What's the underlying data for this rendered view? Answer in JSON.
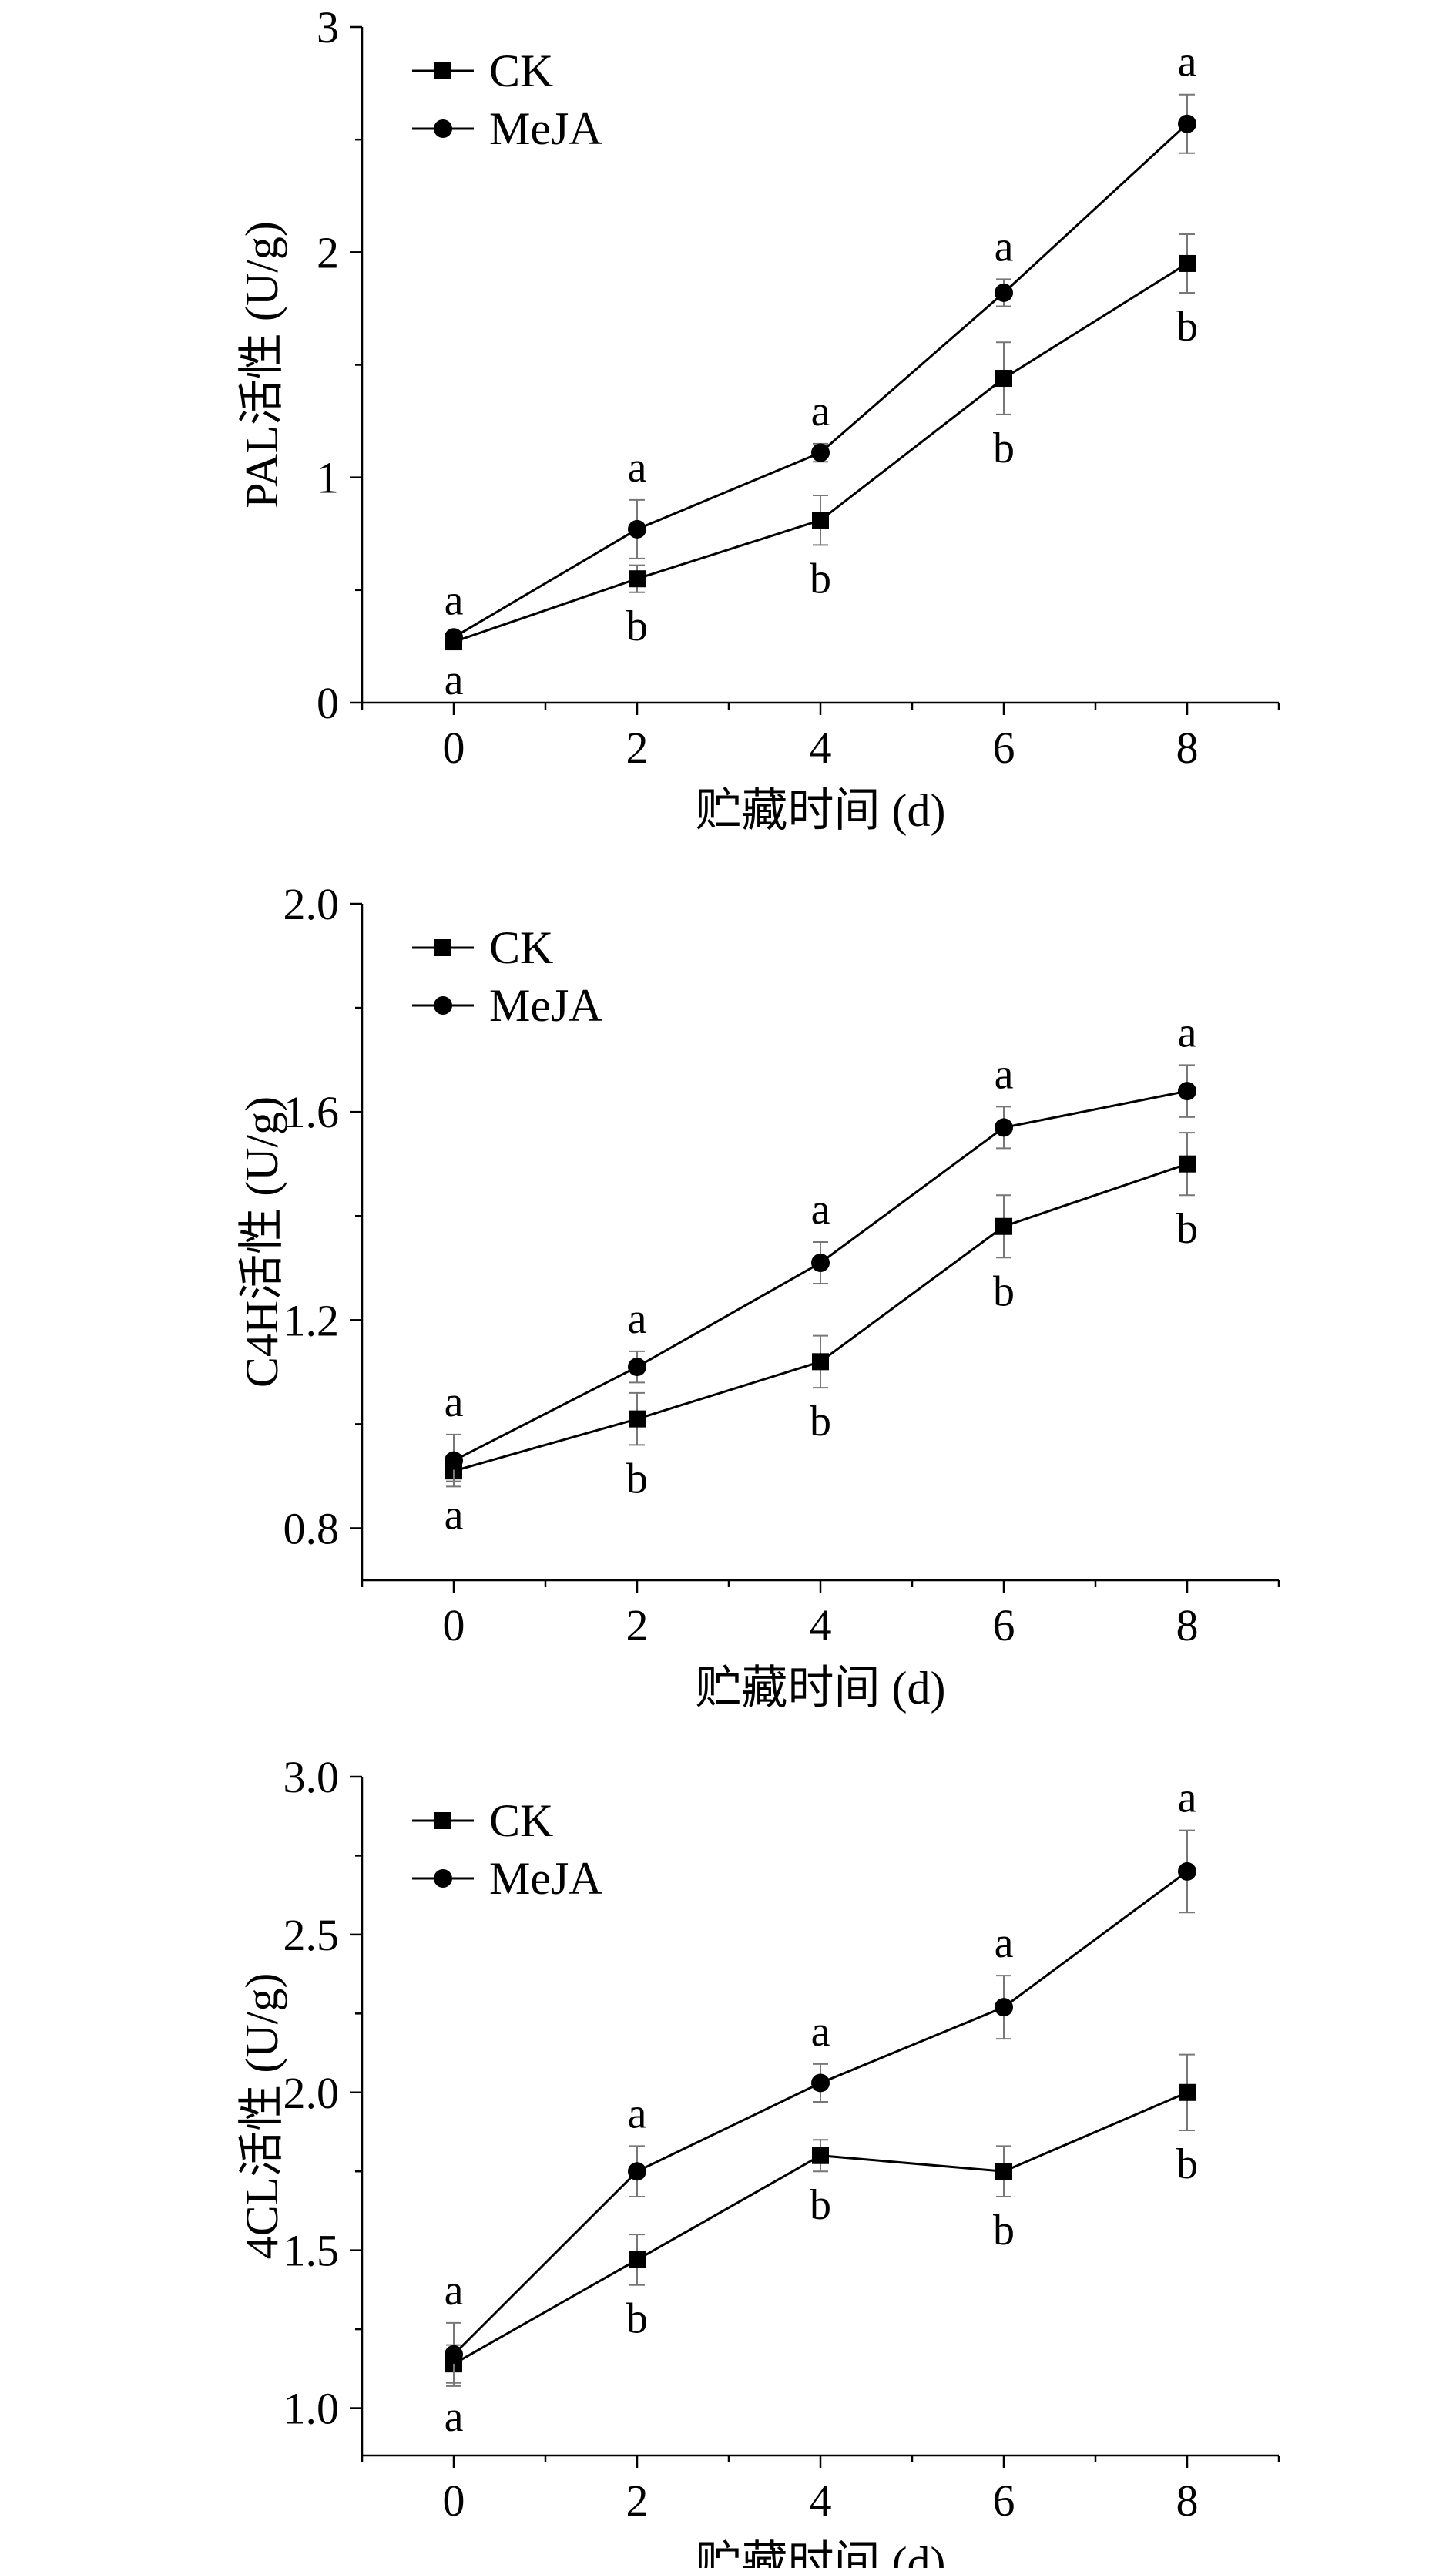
{
  "chart_data": [
    {
      "type": "line",
      "ylabel": "PAL活性 (U/g)",
      "xlabel": "贮藏时间 (d)",
      "x": [
        0,
        2,
        4,
        6,
        8
      ],
      "xlim": [
        -1,
        9
      ],
      "xticks": [
        "0",
        "2",
        "4",
        "6",
        "8"
      ],
      "ylim": [
        0,
        3
      ],
      "yticks": [
        0,
        1,
        2,
        3
      ],
      "ytick_labels": [
        "0",
        "1",
        "2",
        "3"
      ],
      "legend": [
        "CK",
        "MeJA"
      ],
      "series": [
        {
          "name": "CK",
          "marker": "square",
          "values": [
            0.27,
            0.55,
            0.81,
            1.44,
            1.95
          ],
          "errors": [
            0.02,
            0.06,
            0.11,
            0.16,
            0.13
          ],
          "labels": [
            "a",
            "b",
            "b",
            "b",
            "b"
          ]
        },
        {
          "name": "MeJA",
          "marker": "circle",
          "values": [
            0.29,
            0.77,
            1.11,
            1.82,
            2.57
          ],
          "errors": [
            0.02,
            0.13,
            0.04,
            0.06,
            0.13
          ],
          "labels": [
            "a",
            "a",
            "a",
            "a",
            "a"
          ]
        }
      ]
    },
    {
      "type": "line",
      "ylabel": "C4H活性 (U/g)",
      "xlabel": "贮藏时间 (d)",
      "x": [
        0,
        2,
        4,
        6,
        8
      ],
      "xlim": [
        -1,
        9
      ],
      "xticks": [
        "0",
        "2",
        "4",
        "6",
        "8"
      ],
      "ylim": [
        0.7,
        2.0
      ],
      "yticks": [
        0.8,
        1.2,
        1.6,
        2.0
      ],
      "ytick_labels": [
        "0.8",
        "1.2",
        "1.6",
        "2.0"
      ],
      "legend": [
        "CK",
        "MeJA"
      ],
      "series": [
        {
          "name": "CK",
          "marker": "square",
          "values": [
            0.91,
            1.01,
            1.12,
            1.38,
            1.5
          ],
          "errors": [
            0.02,
            0.05,
            0.05,
            0.06,
            0.06
          ],
          "labels": [
            "a",
            "b",
            "b",
            "b",
            "b"
          ]
        },
        {
          "name": "MeJA",
          "marker": "circle",
          "values": [
            0.93,
            1.11,
            1.31,
            1.57,
            1.64
          ],
          "errors": [
            0.05,
            0.03,
            0.04,
            0.04,
            0.05
          ],
          "labels": [
            "a",
            "a",
            "a",
            "a",
            "a"
          ]
        }
      ]
    },
    {
      "type": "line",
      "ylabel": "4CL活性 (U/g)",
      "xlabel": "贮藏时间 (d)",
      "x": [
        0,
        2,
        4,
        6,
        8
      ],
      "xlim": [
        -1,
        9
      ],
      "xticks": [
        "0",
        "2",
        "4",
        "6",
        "8"
      ],
      "ylim": [
        0.85,
        3.0
      ],
      "yticks": [
        1.0,
        1.5,
        2.0,
        2.5,
        3.0
      ],
      "ytick_labels": [
        "1.0",
        "1.5",
        "2.0",
        "2.5",
        "3.0"
      ],
      "legend": [
        "CK",
        "MeJA"
      ],
      "series": [
        {
          "name": "CK",
          "marker": "square",
          "values": [
            1.14,
            1.47,
            1.8,
            1.75,
            2.0
          ],
          "errors": [
            0.06,
            0.08,
            0.05,
            0.08,
            0.12
          ],
          "labels": [
            "a",
            "b",
            "b",
            "b",
            "b"
          ]
        },
        {
          "name": "MeJA",
          "marker": "circle",
          "values": [
            1.17,
            1.75,
            2.03,
            2.27,
            2.7
          ],
          "errors": [
            0.1,
            0.08,
            0.06,
            0.1,
            0.13
          ],
          "labels": [
            "a",
            "a",
            "a",
            "a",
            "a"
          ]
        }
      ]
    }
  ]
}
